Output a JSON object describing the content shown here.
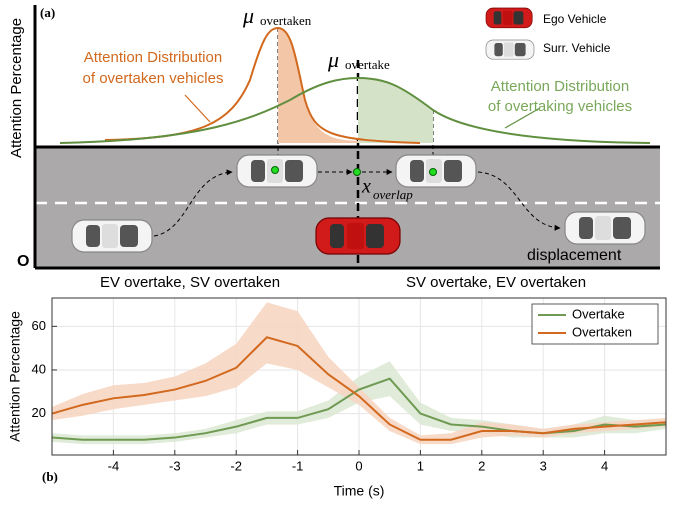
{
  "diagram": {
    "panel_label": "(a)",
    "y_axis_label": "Attention Percentage",
    "origin_label": "O",
    "mu_overtaken": {
      "symbol": "μ",
      "subscript": "overtaken"
    },
    "mu_overtake": {
      "symbol": "μ",
      "subscript": "overtake"
    },
    "overtaken_label": [
      "Attention Distribution",
      "of overtaken vehicles"
    ],
    "overtaking_label": [
      "Attention Distribution",
      "of overtaking vehicles"
    ],
    "legend": [
      "Ego Vehicle",
      "Surr. Vehicle"
    ],
    "x_overlap": {
      "symbol": "x",
      "subscript": "overlap"
    },
    "displacement_label": "displacement",
    "left_caption": "EV overtake, SV overtaken",
    "right_caption": "SV overtake, EV overtaken"
  },
  "panel_b_label": "(b)",
  "chart_data": {
    "type": "line",
    "x_label": "Time (s)",
    "y_label": "Attention Percentage",
    "x": [
      -5,
      -4.5,
      -4,
      -3.5,
      -3,
      -2.5,
      -2,
      -1.5,
      -1,
      -0.5,
      0,
      0.5,
      1,
      1.5,
      2,
      2.5,
      3,
      3.5,
      4,
      4.5,
      5
    ],
    "series": [
      {
        "name": "Overtake",
        "color": "#6f9a52",
        "band_color": "#dbe7d2",
        "values": [
          9,
          8,
          8,
          8,
          9,
          11,
          14,
          18,
          18,
          22,
          31,
          36,
          20,
          15,
          14,
          12,
          11,
          12,
          15,
          14,
          15
        ],
        "upper": [
          11,
          10,
          10,
          10,
          11,
          13,
          17,
          21,
          21,
          26,
          37,
          44,
          25,
          18,
          17,
          15,
          13,
          15,
          19,
          17,
          17
        ],
        "lower": [
          7,
          6,
          6,
          6,
          7,
          9,
          11,
          15,
          15,
          18,
          25,
          28,
          15,
          12,
          11,
          9,
          9,
          9,
          11,
          11,
          13
        ]
      },
      {
        "name": "Overtaken",
        "color": "#d2691e",
        "band_color": "#f7d3c0",
        "values": [
          20,
          24,
          27,
          28.5,
          31,
          35,
          41,
          55,
          51,
          38,
          28,
          15,
          8,
          8,
          12,
          12,
          11,
          13,
          14,
          15,
          16
        ],
        "upper": [
          23,
          29,
          33,
          34,
          37,
          43,
          52,
          71,
          67,
          46,
          32,
          18,
          10,
          11,
          16,
          15,
          13,
          15,
          16,
          17,
          18
        ],
        "lower": [
          17,
          19,
          22,
          24,
          26,
          28,
          32,
          43,
          40,
          32,
          24,
          12,
          6,
          6,
          9,
          10,
          9,
          11,
          12,
          13,
          14
        ]
      }
    ],
    "xlim": [
      -5,
      5
    ],
    "ylim": [
      1,
      73
    ],
    "xticks": [
      -4,
      -3,
      -2,
      -1,
      0,
      1,
      2,
      3,
      4
    ],
    "yticks": [
      20,
      40,
      60
    ],
    "grid": true,
    "legend": "upper right"
  }
}
